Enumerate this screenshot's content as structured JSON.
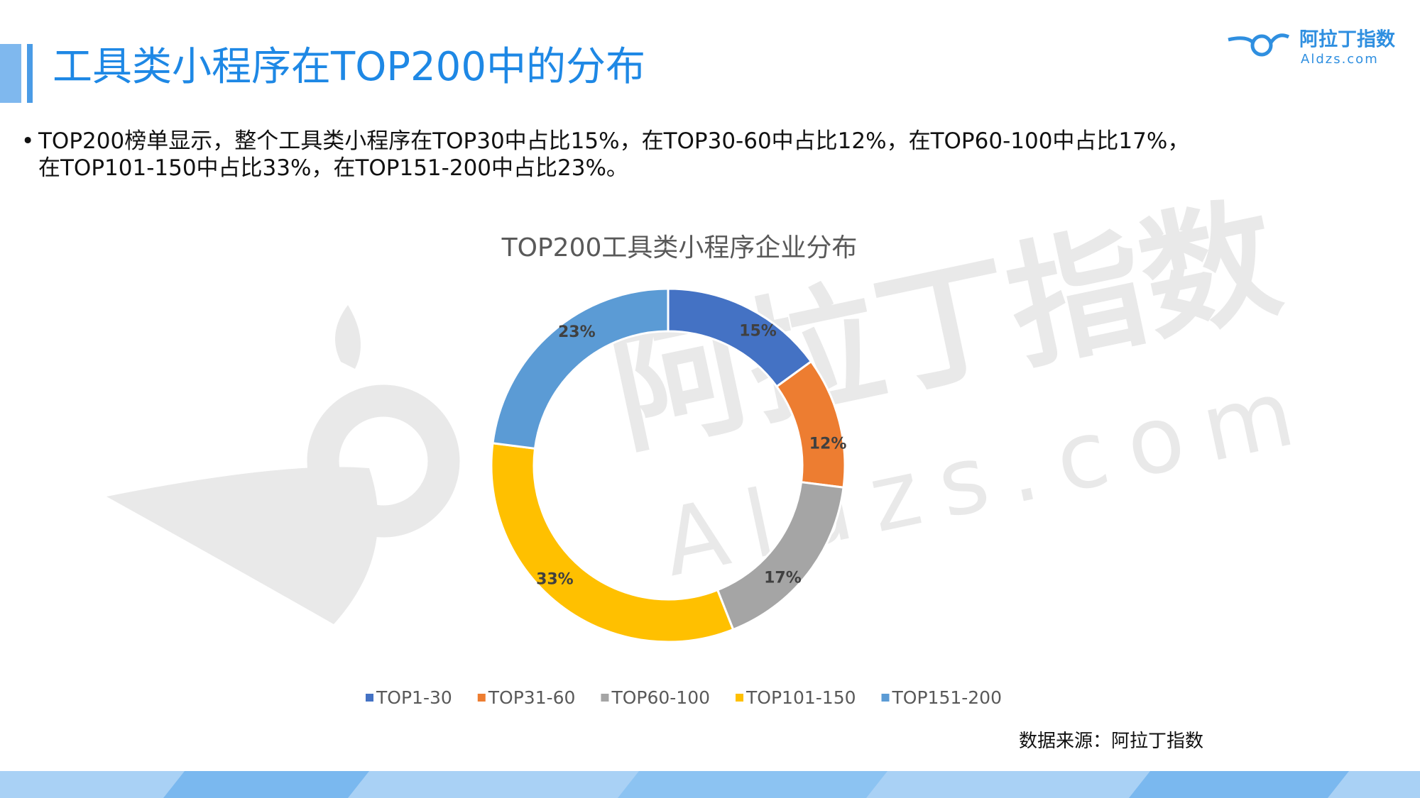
{
  "header": {
    "title": "工具类小程序在TOP200中的分布"
  },
  "logo": {
    "name": "阿拉丁指数",
    "domain": "Aldzs.com"
  },
  "bullet": "TOP200榜单显示，整个工具类小程序在TOP30中占比15%，在TOP30-60中占比12%，在TOP60-100中占比17%，在TOP101-150中占比33%，在TOP151-200中占比23%。",
  "source": "数据来源：阿拉丁指数",
  "chart_data": {
    "type": "pie",
    "donut": true,
    "title": "TOP200工具类小程序企业分布",
    "categories": [
      "TOP1-30",
      "TOP31-60",
      "TOP60-100",
      "TOP101-150",
      "TOP151-200"
    ],
    "values": [
      15,
      12,
      17,
      33,
      23
    ],
    "value_labels": [
      "15%",
      "12%",
      "17%",
      "33%",
      "23%"
    ],
    "colors": [
      "#4472c4",
      "#ed7d31",
      "#a5a5a5",
      "#ffc000",
      "#5b9bd5"
    ],
    "legend": "bottom"
  }
}
